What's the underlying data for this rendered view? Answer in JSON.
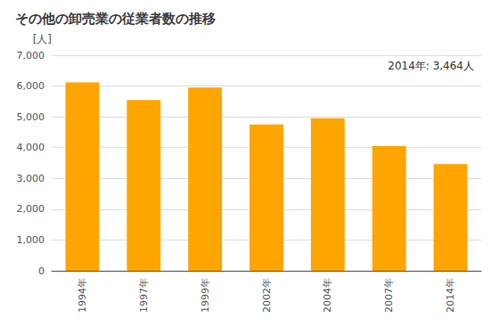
{
  "chart_data": {
    "type": "bar",
    "title": "その他の卸売業の従業者数の推移",
    "ylabel": "[人]",
    "annotation": "2014年: 3,464人",
    "categories": [
      "1994年",
      "1997年",
      "1999年",
      "2002年",
      "2004年",
      "2007年",
      "2014年"
    ],
    "values": [
      6120,
      5550,
      5950,
      4750,
      4950,
      4050,
      3464
    ],
    "color": "#FFA500",
    "ylim": [
      0,
      7000
    ],
    "yticks": [
      0,
      {
        "value": 1000,
        "label": "1,000"
      },
      {
        "value": 2000,
        "label": "2,000"
      },
      {
        "value": 3000,
        "label": "3,000"
      },
      {
        "value": 4000,
        "label": "4,000"
      },
      {
        "value": 5000,
        "label": "5,000"
      },
      {
        "value": 6000,
        "label": "6,000"
      },
      {
        "value": 7000,
        "label": "7,000"
      }
    ],
    "grid": true
  }
}
